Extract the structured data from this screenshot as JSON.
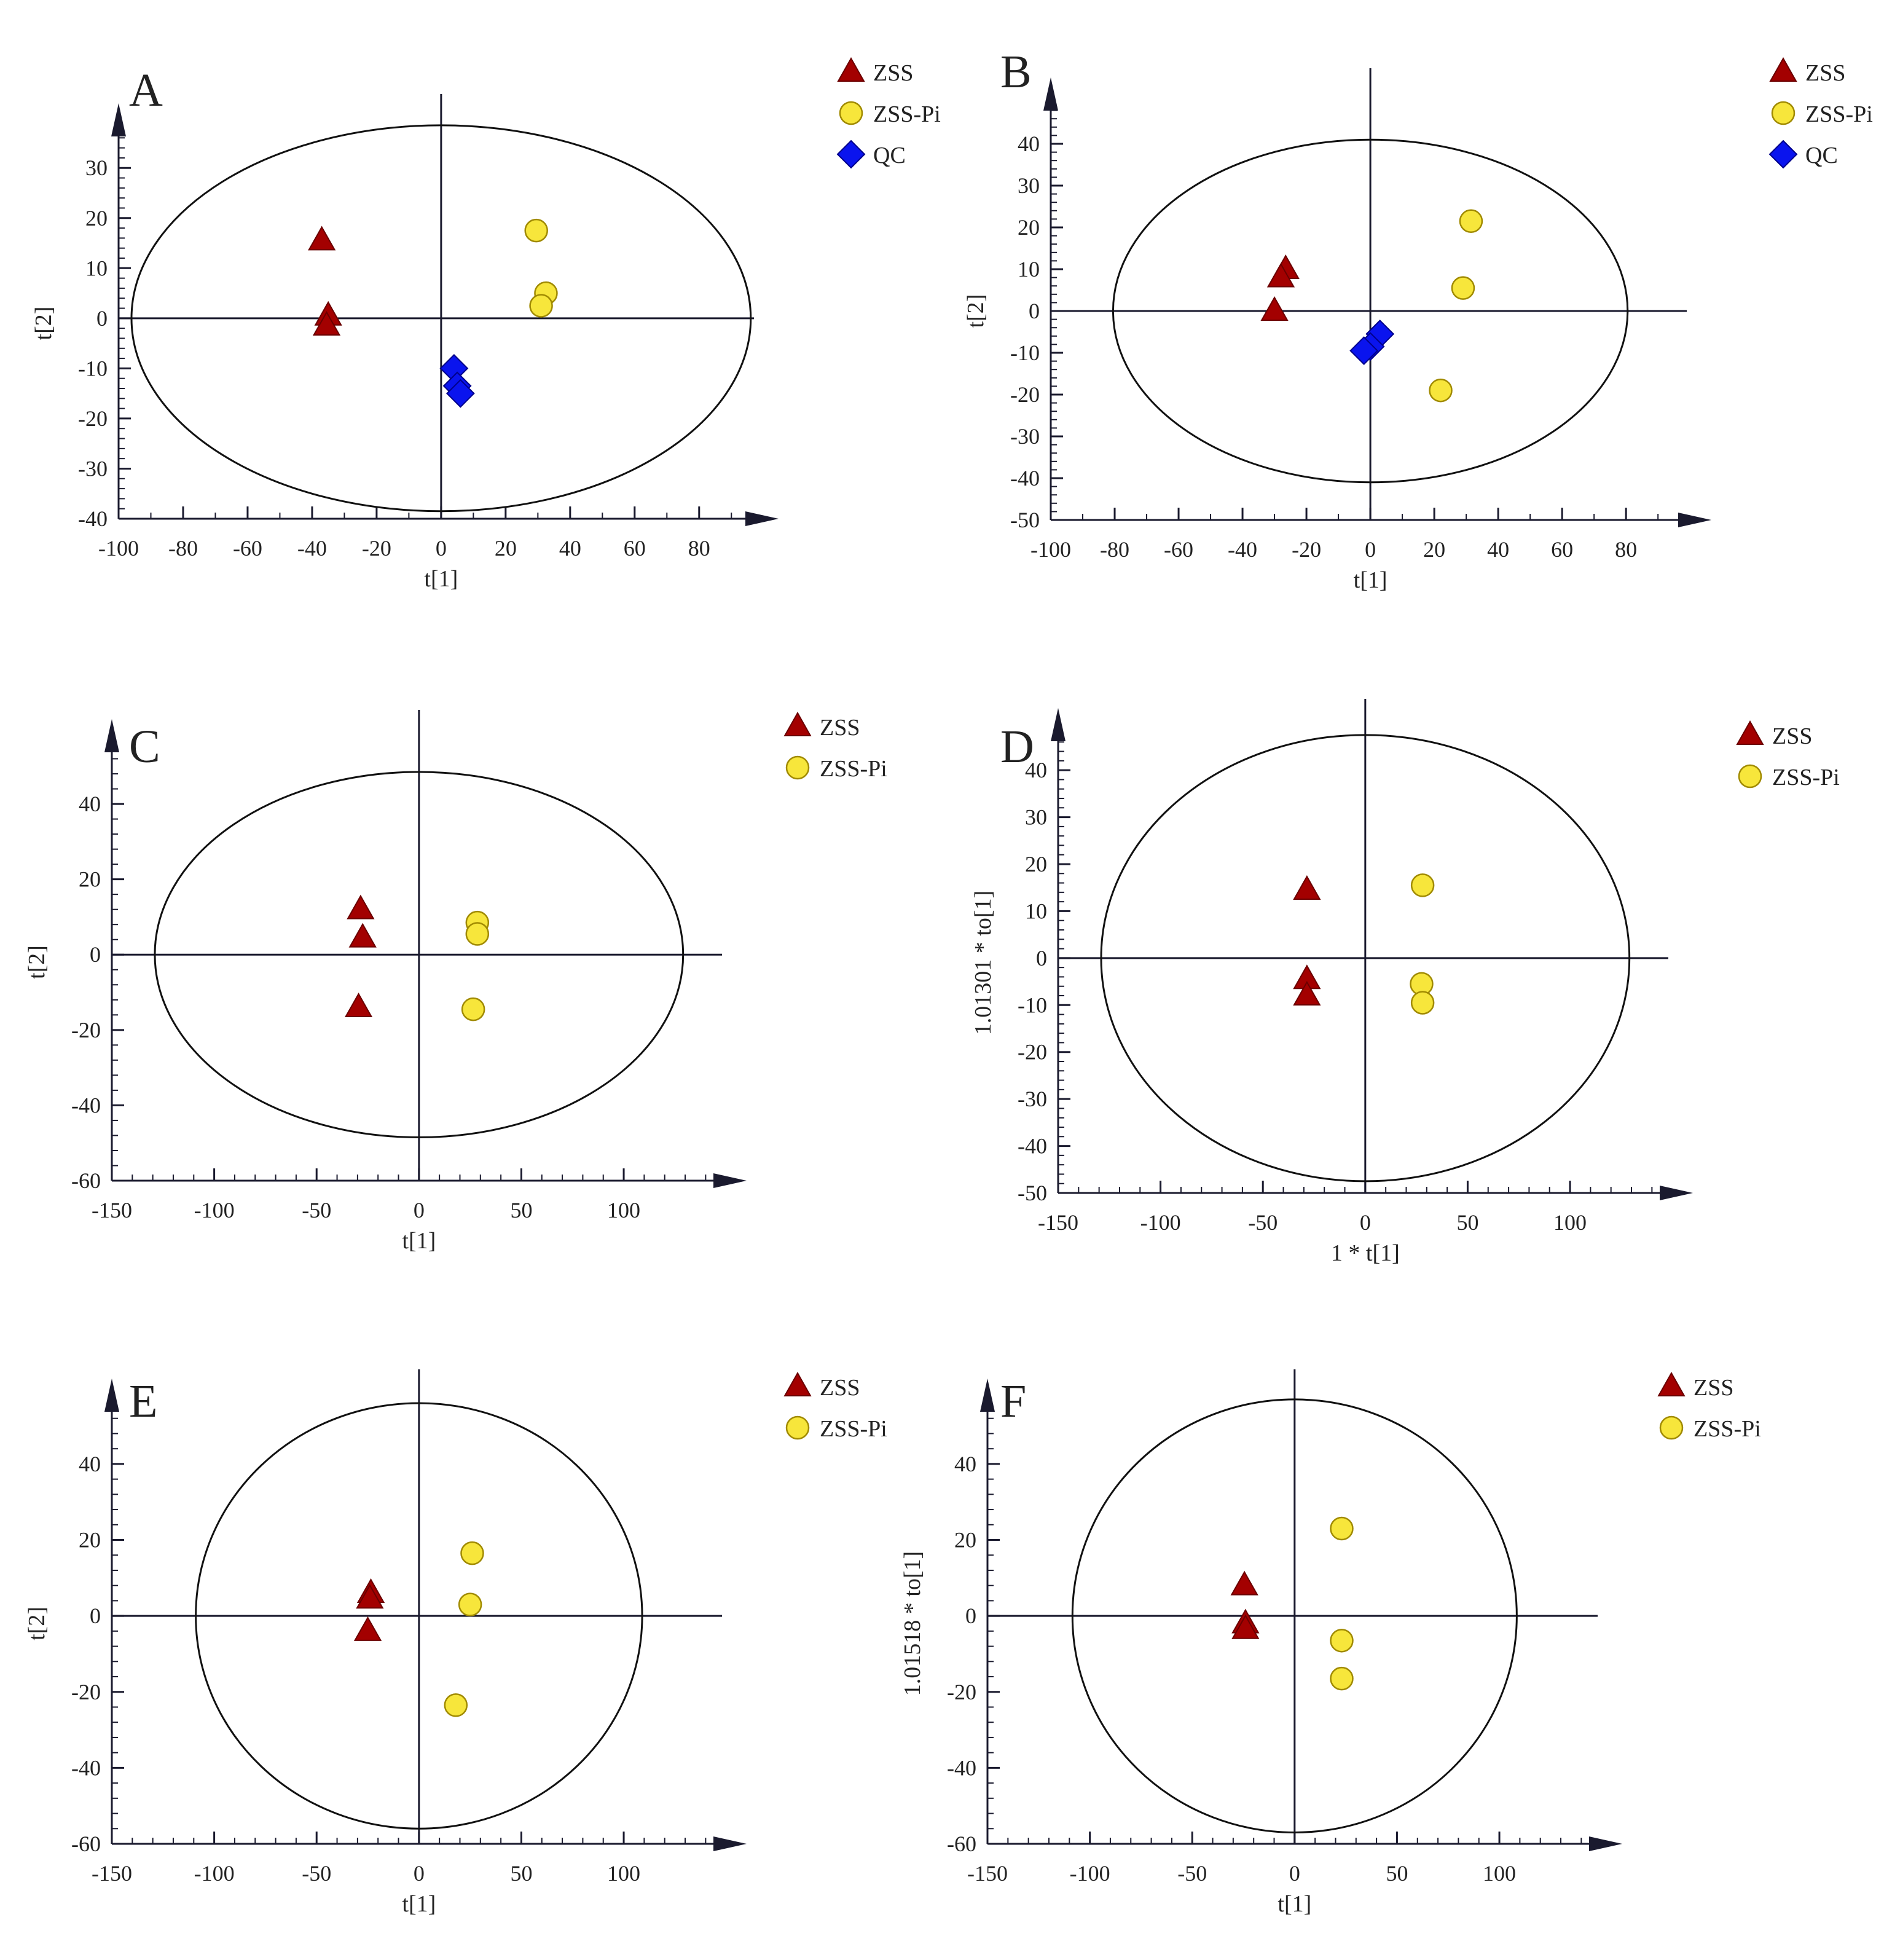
{
  "colors": {
    "zss": "#a30000",
    "zss_pi": "#f7e63b",
    "qc": "#0a14ee",
    "axis": "#1a1a2e"
  },
  "chart_data": [
    {
      "panel": "A",
      "type": "scatter",
      "xlabel": "t[1]",
      "ylabel": "t[2]",
      "xlim": [
        -100,
        97
      ],
      "ylim": [
        -40,
        38
      ],
      "xticks": [
        -100,
        -80,
        -60,
        -40,
        -20,
        0,
        20,
        40,
        60,
        80
      ],
      "yticks": [
        -40,
        -30,
        -20,
        -10,
        0,
        10,
        20,
        30
      ],
      "xminor": 10,
      "yminor": 2,
      "ellipse": {
        "rx": 96,
        "ry": 38.5
      },
      "series": [
        {
          "name": "ZSS",
          "marker": "triangle",
          "points": [
            [
              -37,
              15.5
            ],
            [
              -35,
              0.5
            ],
            [
              -35.5,
              -1.5
            ]
          ]
        },
        {
          "name": "ZSS-Pi",
          "marker": "circle",
          "points": [
            [
              29.5,
              17.5
            ],
            [
              32.5,
              5
            ],
            [
              31,
              2.5
            ]
          ]
        },
        {
          "name": "QC",
          "marker": "diamond",
          "points": [
            [
              4,
              -10
            ],
            [
              5,
              -13.5
            ],
            [
              6,
              -15
            ]
          ]
        }
      ]
    },
    {
      "panel": "B",
      "type": "scatter",
      "xlabel": "t[1]",
      "ylabel": "t[2]",
      "xlim": [
        -100,
        99
      ],
      "ylim": [
        -50,
        50
      ],
      "xticks": [
        -100,
        -80,
        -60,
        -40,
        -20,
        0,
        20,
        40,
        60,
        80
      ],
      "yticks": [
        -50,
        -40,
        -30,
        -20,
        -10,
        0,
        10,
        20,
        30,
        40
      ],
      "xminor": 10,
      "yminor": 2,
      "ellipse": {
        "rx": 80.5,
        "ry": 41
      },
      "series": [
        {
          "name": "ZSS",
          "marker": "triangle",
          "points": [
            [
              -26.5,
              10
            ],
            [
              -28,
              8
            ],
            [
              -30,
              0
            ]
          ]
        },
        {
          "name": "ZSS-Pi",
          "marker": "circle",
          "points": [
            [
              31.5,
              21.5
            ],
            [
              29,
              5.5
            ],
            [
              22,
              -19
            ]
          ]
        },
        {
          "name": "QC",
          "marker": "diamond",
          "points": [
            [
              3,
              -5.5
            ],
            [
              0,
              -8.5
            ],
            [
              -2,
              -9.5
            ]
          ]
        }
      ]
    },
    {
      "panel": "C",
      "type": "scatter",
      "xlabel": "t[1]",
      "ylabel": "t[2]",
      "xlim": [
        -150,
        148
      ],
      "ylim": [
        -60,
        56
      ],
      "xticks": [
        -150,
        -100,
        -50,
        0,
        50,
        100
      ],
      "yticks": [
        -60,
        -40,
        -20,
        0,
        20,
        40
      ],
      "xminor": 10,
      "yminor": 4,
      "ellipse": {
        "rx": 129,
        "ry": 48.5
      },
      "series": [
        {
          "name": "ZSS",
          "marker": "triangle",
          "points": [
            [
              -28.5,
              12
            ],
            [
              -27.5,
              4.5
            ],
            [
              -29.5,
              -14
            ]
          ]
        },
        {
          "name": "ZSS-Pi",
          "marker": "circle",
          "points": [
            [
              28.5,
              8.5
            ],
            [
              28.5,
              5.5
            ],
            [
              26.5,
              -14.5
            ]
          ]
        }
      ]
    },
    {
      "panel": "D",
      "type": "scatter",
      "xlabel": "1 * t[1]",
      "ylabel": "1.01301 * to[1]",
      "xlim": [
        -150,
        148
      ],
      "ylim": [
        -50,
        48
      ],
      "xticks": [
        -150,
        -100,
        -50,
        0,
        50,
        100
      ],
      "yticks": [
        -50,
        -40,
        -30,
        -20,
        -10,
        0,
        10,
        20,
        30,
        40
      ],
      "xminor": 10,
      "yminor": 2,
      "ellipse": {
        "rx": 129,
        "ry": 47.5
      },
      "series": [
        {
          "name": "ZSS",
          "marker": "triangle",
          "points": [
            [
              -28.5,
              14.5
            ],
            [
              -28.5,
              -4.5
            ],
            [
              -28.5,
              -8
            ]
          ]
        },
        {
          "name": "ZSS-Pi",
          "marker": "circle",
          "points": [
            [
              28,
              15.5
            ],
            [
              27.5,
              -5.5
            ],
            [
              28,
              -9.5
            ]
          ]
        }
      ]
    },
    {
      "panel": "E",
      "type": "scatter",
      "xlabel": "t[1]",
      "ylabel": "t[2]",
      "xlim": [
        -150,
        148
      ],
      "ylim": [
        -60,
        56
      ],
      "xticks": [
        -150,
        -100,
        -50,
        0,
        50,
        100
      ],
      "yticks": [
        -60,
        -40,
        -20,
        0,
        20,
        40
      ],
      "xminor": 10,
      "yminor": 4,
      "ellipse": {
        "rx": 109,
        "ry": 56
      },
      "series": [
        {
          "name": "ZSS",
          "marker": "triangle",
          "points": [
            [
              -23.5,
              6
            ],
            [
              -24,
              4.5
            ],
            [
              -25,
              -4
            ]
          ]
        },
        {
          "name": "ZSS-Pi",
          "marker": "circle",
          "points": [
            [
              26,
              16.5
            ],
            [
              25,
              3
            ],
            [
              18,
              -23.5
            ]
          ]
        }
      ]
    },
    {
      "panel": "F",
      "type": "scatter",
      "xlabel": "t[1]",
      "ylabel": "1.01518 * to[1]",
      "xlim": [
        -150,
        148
      ],
      "ylim": [
        -60,
        56
      ],
      "xticks": [
        -150,
        -100,
        -50,
        0,
        50,
        100
      ],
      "yticks": [
        -60,
        -40,
        -20,
        0,
        20,
        40
      ],
      "xminor": 10,
      "yminor": 4,
      "ellipse": {
        "rx": 108.5,
        "ry": 57
      },
      "series": [
        {
          "name": "ZSS",
          "marker": "triangle",
          "points": [
            [
              -24.5,
              8
            ],
            [
              -24,
              -2
            ],
            [
              -24,
              -3.5
            ]
          ]
        },
        {
          "name": "ZSS-Pi",
          "marker": "circle",
          "points": [
            [
              23,
              23
            ],
            [
              23,
              -6.5
            ],
            [
              23,
              -16.5
            ]
          ]
        }
      ]
    }
  ]
}
